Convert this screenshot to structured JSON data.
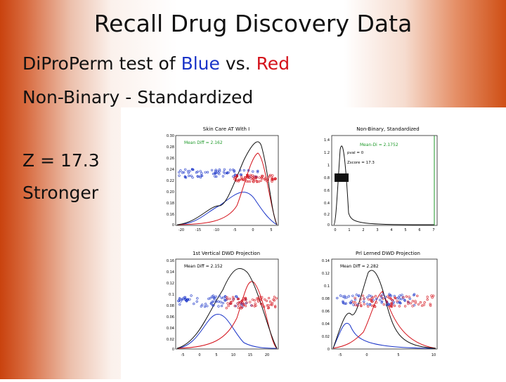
{
  "title": "Recall Drug Discovery Data",
  "subtitle": {
    "prefix": "DiProPerm test of ",
    "blue": "Blue",
    "mid": " vs. ",
    "red": "Red"
  },
  "line2": "Non-Binary - Standardized",
  "z_text": "Z = 17.3",
  "strength_text": "Stronger",
  "colors": {
    "blue": "#1a34c8",
    "red": "#d4121b",
    "accent": "#c9420e"
  },
  "panels": {
    "p1": {
      "title": "Skin Care AT With I",
      "legend": "Mean Diff = 2.162",
      "yticks": [
        "0.30",
        "0.28",
        "0.26",
        "0.24",
        "0.22",
        "0.20",
        "0.18",
        "0.16",
        "0.14",
        "0.12",
        "0.10",
        "0.08",
        "0.06",
        "0.04",
        "0.02",
        "0"
      ],
      "xticks": [
        "-20",
        "-15",
        "-10",
        "-5",
        "0",
        "5"
      ]
    },
    "p2": {
      "title": "Non-Binary, Standardized",
      "legend": "Mean-Di = 2.1752",
      "stat1": "pval = 0",
      "stat2": "Zscore = 17.3",
      "yticks": [
        "1.4",
        "1.2",
        "1",
        "0.8",
        "0.6",
        "0.4",
        "0.2",
        "0"
      ],
      "xticks": [
        "0",
        "1",
        "2",
        "3",
        "4",
        "5",
        "6",
        "7"
      ]
    },
    "p3": {
      "title": "1st Vertical DWD Projection",
      "legend": "Mean Diff = 2.152",
      "yticks": [
        "0.16",
        "0.14",
        "0.12",
        "0.1",
        "0.08",
        "0.06",
        "0.04",
        "0.02",
        "0"
      ],
      "xticks": [
        "-5",
        "0",
        "5",
        "10",
        "15",
        "20"
      ]
    },
    "p4": {
      "title": "Prl Lerned DWD Projection",
      "legend": "Mean Diff = 2.282",
      "yticks": [
        "0.14",
        "0.12",
        "0.1",
        "0.08",
        "0.06",
        "0.04",
        "0.02",
        "0"
      ],
      "xticks": [
        "-5",
        "0",
        "5",
        "10"
      ]
    }
  }
}
